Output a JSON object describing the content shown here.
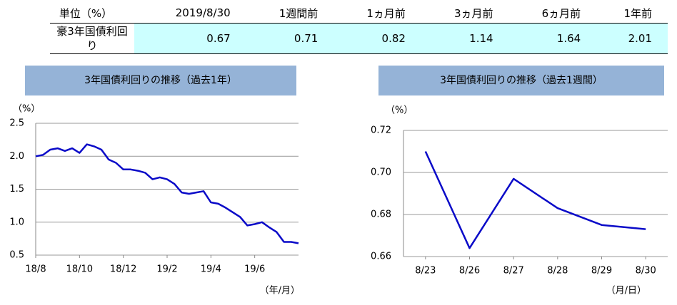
{
  "table": {
    "header": [
      "単位（%）",
      "2019/8/30",
      "1週間前",
      "1ヵ月前",
      "3ヵ月前",
      "6ヵ月前",
      "1年前"
    ],
    "rows": [
      [
        "豪3年国債利回り",
        0.67,
        0.71,
        0.82,
        1.14,
        1.64,
        2.01
      ]
    ]
  },
  "chart_data": [
    {
      "type": "line",
      "title": "3年国債利回りの推移（過去1年）",
      "y_label": "（%）",
      "x_label": "（年/月）",
      "categories": [
        "18/8",
        null,
        null,
        null,
        null,
        null,
        "18/10",
        null,
        null,
        null,
        null,
        null,
        "18/12",
        null,
        null,
        null,
        null,
        null,
        "19/2",
        null,
        null,
        null,
        null,
        null,
        "19/4",
        null,
        null,
        null,
        null,
        null,
        "19/6",
        null,
        null,
        null,
        null,
        null,
        null
      ],
      "series": [
        {
          "name": "豪3年国債利回り",
          "color": "#0a0ac8",
          "values": [
            2.0,
            2.02,
            2.1,
            2.12,
            2.08,
            2.12,
            2.05,
            2.18,
            2.15,
            2.1,
            1.95,
            1.9,
            1.8,
            1.8,
            1.78,
            1.75,
            1.65,
            1.68,
            1.65,
            1.58,
            1.45,
            1.43,
            1.45,
            1.47,
            1.3,
            1.28,
            1.22,
            1.15,
            1.08,
            0.95,
            0.97,
            1.0,
            0.92,
            0.85,
            0.7,
            0.7,
            0.68
          ]
        }
      ],
      "ylim": [
        0.5,
        2.5
      ],
      "yticks": [
        0.5,
        {
          "value": 1,
          "label": "1.0"
        },
        1.5,
        {
          "value": 2,
          "label": "2.0"
        },
        2.5
      ],
      "grid": true
    },
    {
      "type": "line",
      "title": "3年国債利回りの推移（過去1週間）",
      "y_label": "（%）",
      "x_label": "（月/日）",
      "categories": [
        "8/23",
        "8/26",
        "8/27",
        "8/28",
        "8/29",
        "8/30"
      ],
      "series": [
        {
          "name": "豪3年国債利回り",
          "color": "#0a0ac8",
          "values": [
            0.71,
            0.664,
            0.697,
            0.683,
            0.675,
            0.673
          ]
        }
      ],
      "ylim": [
        0.66,
        0.72
      ],
      "yticks": [
        0.66,
        0.68,
        {
          "value": 0.7,
          "label": "0.70"
        },
        0.72
      ],
      "grid": true
    }
  ]
}
